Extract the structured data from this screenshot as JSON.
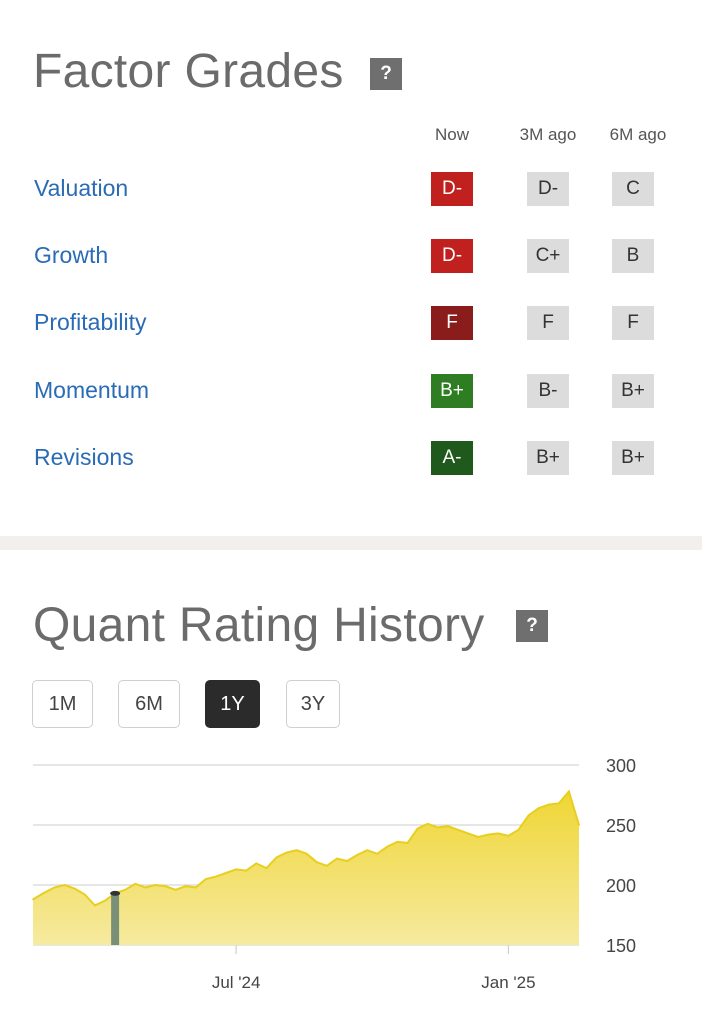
{
  "factor_grades": {
    "title": "Factor Grades",
    "help_glyph": "?",
    "columns": [
      "Now",
      "3M ago",
      "6M ago"
    ],
    "rows": [
      {
        "label": "Valuation",
        "grades": [
          {
            "text": "D-",
            "color": "#c0201e"
          },
          {
            "text": "D-",
            "color": "#dcdcdc"
          },
          {
            "text": "C",
            "color": "#dcdcdc"
          }
        ]
      },
      {
        "label": "Growth",
        "grades": [
          {
            "text": "D-",
            "color": "#c0201e"
          },
          {
            "text": "C+",
            "color": "#dcdcdc"
          },
          {
            "text": "B",
            "color": "#dcdcdc"
          }
        ]
      },
      {
        "label": "Profitability",
        "grades": [
          {
            "text": "F",
            "color": "#8a1c1c"
          },
          {
            "text": "F",
            "color": "#dcdcdc"
          },
          {
            "text": "F",
            "color": "#dcdcdc"
          }
        ]
      },
      {
        "label": "Momentum",
        "grades": [
          {
            "text": "B+",
            "color": "#2e7d22"
          },
          {
            "text": "B-",
            "color": "#dcdcdc"
          },
          {
            "text": "B+",
            "color": "#dcdcdc"
          }
        ]
      },
      {
        "label": "Revisions",
        "grades": [
          {
            "text": "A-",
            "color": "#1f5a1c"
          },
          {
            "text": "B+",
            "color": "#dcdcdc"
          },
          {
            "text": "B+",
            "color": "#dcdcdc"
          }
        ]
      }
    ]
  },
  "quant_history": {
    "title": "Quant Rating History",
    "help_glyph": "?",
    "ranges": [
      "1M",
      "6M",
      "1Y",
      "3Y"
    ],
    "active_range": "1Y"
  },
  "chart_data": {
    "type": "area",
    "title": "",
    "xlabel": "",
    "ylabel": "",
    "x_ticks": [
      "Jul '24",
      "Jan '25"
    ],
    "y_ticks": [
      300,
      250,
      200,
      150
    ],
    "ylim": [
      150,
      300
    ],
    "grid": true,
    "axis_side": "right",
    "fill_color": "#f0d733",
    "line_color": "#e8cf1f",
    "marker_color": "#7a8f78",
    "x": [
      "2024-02-15",
      "2024-02-22",
      "2024-03-01",
      "2024-03-08",
      "2024-03-15",
      "2024-03-22",
      "2024-03-29",
      "2024-04-05",
      "2024-04-12",
      "2024-04-19",
      "2024-04-26",
      "2024-05-03",
      "2024-05-10",
      "2024-05-17",
      "2024-05-24",
      "2024-05-31",
      "2024-06-07",
      "2024-06-14",
      "2024-06-21",
      "2024-06-28",
      "2024-07-05",
      "2024-07-12",
      "2024-07-19",
      "2024-07-26",
      "2024-08-02",
      "2024-08-09",
      "2024-08-16",
      "2024-08-23",
      "2024-08-30",
      "2024-09-06",
      "2024-09-13",
      "2024-09-20",
      "2024-09-27",
      "2024-10-04",
      "2024-10-11",
      "2024-10-18",
      "2024-10-25",
      "2024-11-01",
      "2024-11-08",
      "2024-11-15",
      "2024-11-22",
      "2024-11-29",
      "2024-12-06",
      "2024-12-13",
      "2024-12-20",
      "2024-12-27",
      "2025-01-03",
      "2025-01-10",
      "2025-01-17",
      "2025-01-24",
      "2025-01-31",
      "2025-02-07",
      "2025-02-14",
      "2025-02-21",
      "2025-02-28"
    ],
    "y": [
      188,
      193,
      198,
      200,
      197,
      192,
      183,
      187,
      193,
      196,
      201,
      198,
      200,
      199,
      196,
      199,
      198,
      205,
      207,
      210,
      213,
      212,
      218,
      214,
      223,
      227,
      229,
      226,
      219,
      216,
      222,
      220,
      225,
      229,
      226,
      232,
      236,
      235,
      247,
      251,
      248,
      249,
      246,
      243,
      240,
      242,
      243,
      241,
      246,
      258,
      264,
      267,
      268,
      278,
      250
    ],
    "marker": {
      "x": "2024-04-12",
      "y": 193
    }
  }
}
